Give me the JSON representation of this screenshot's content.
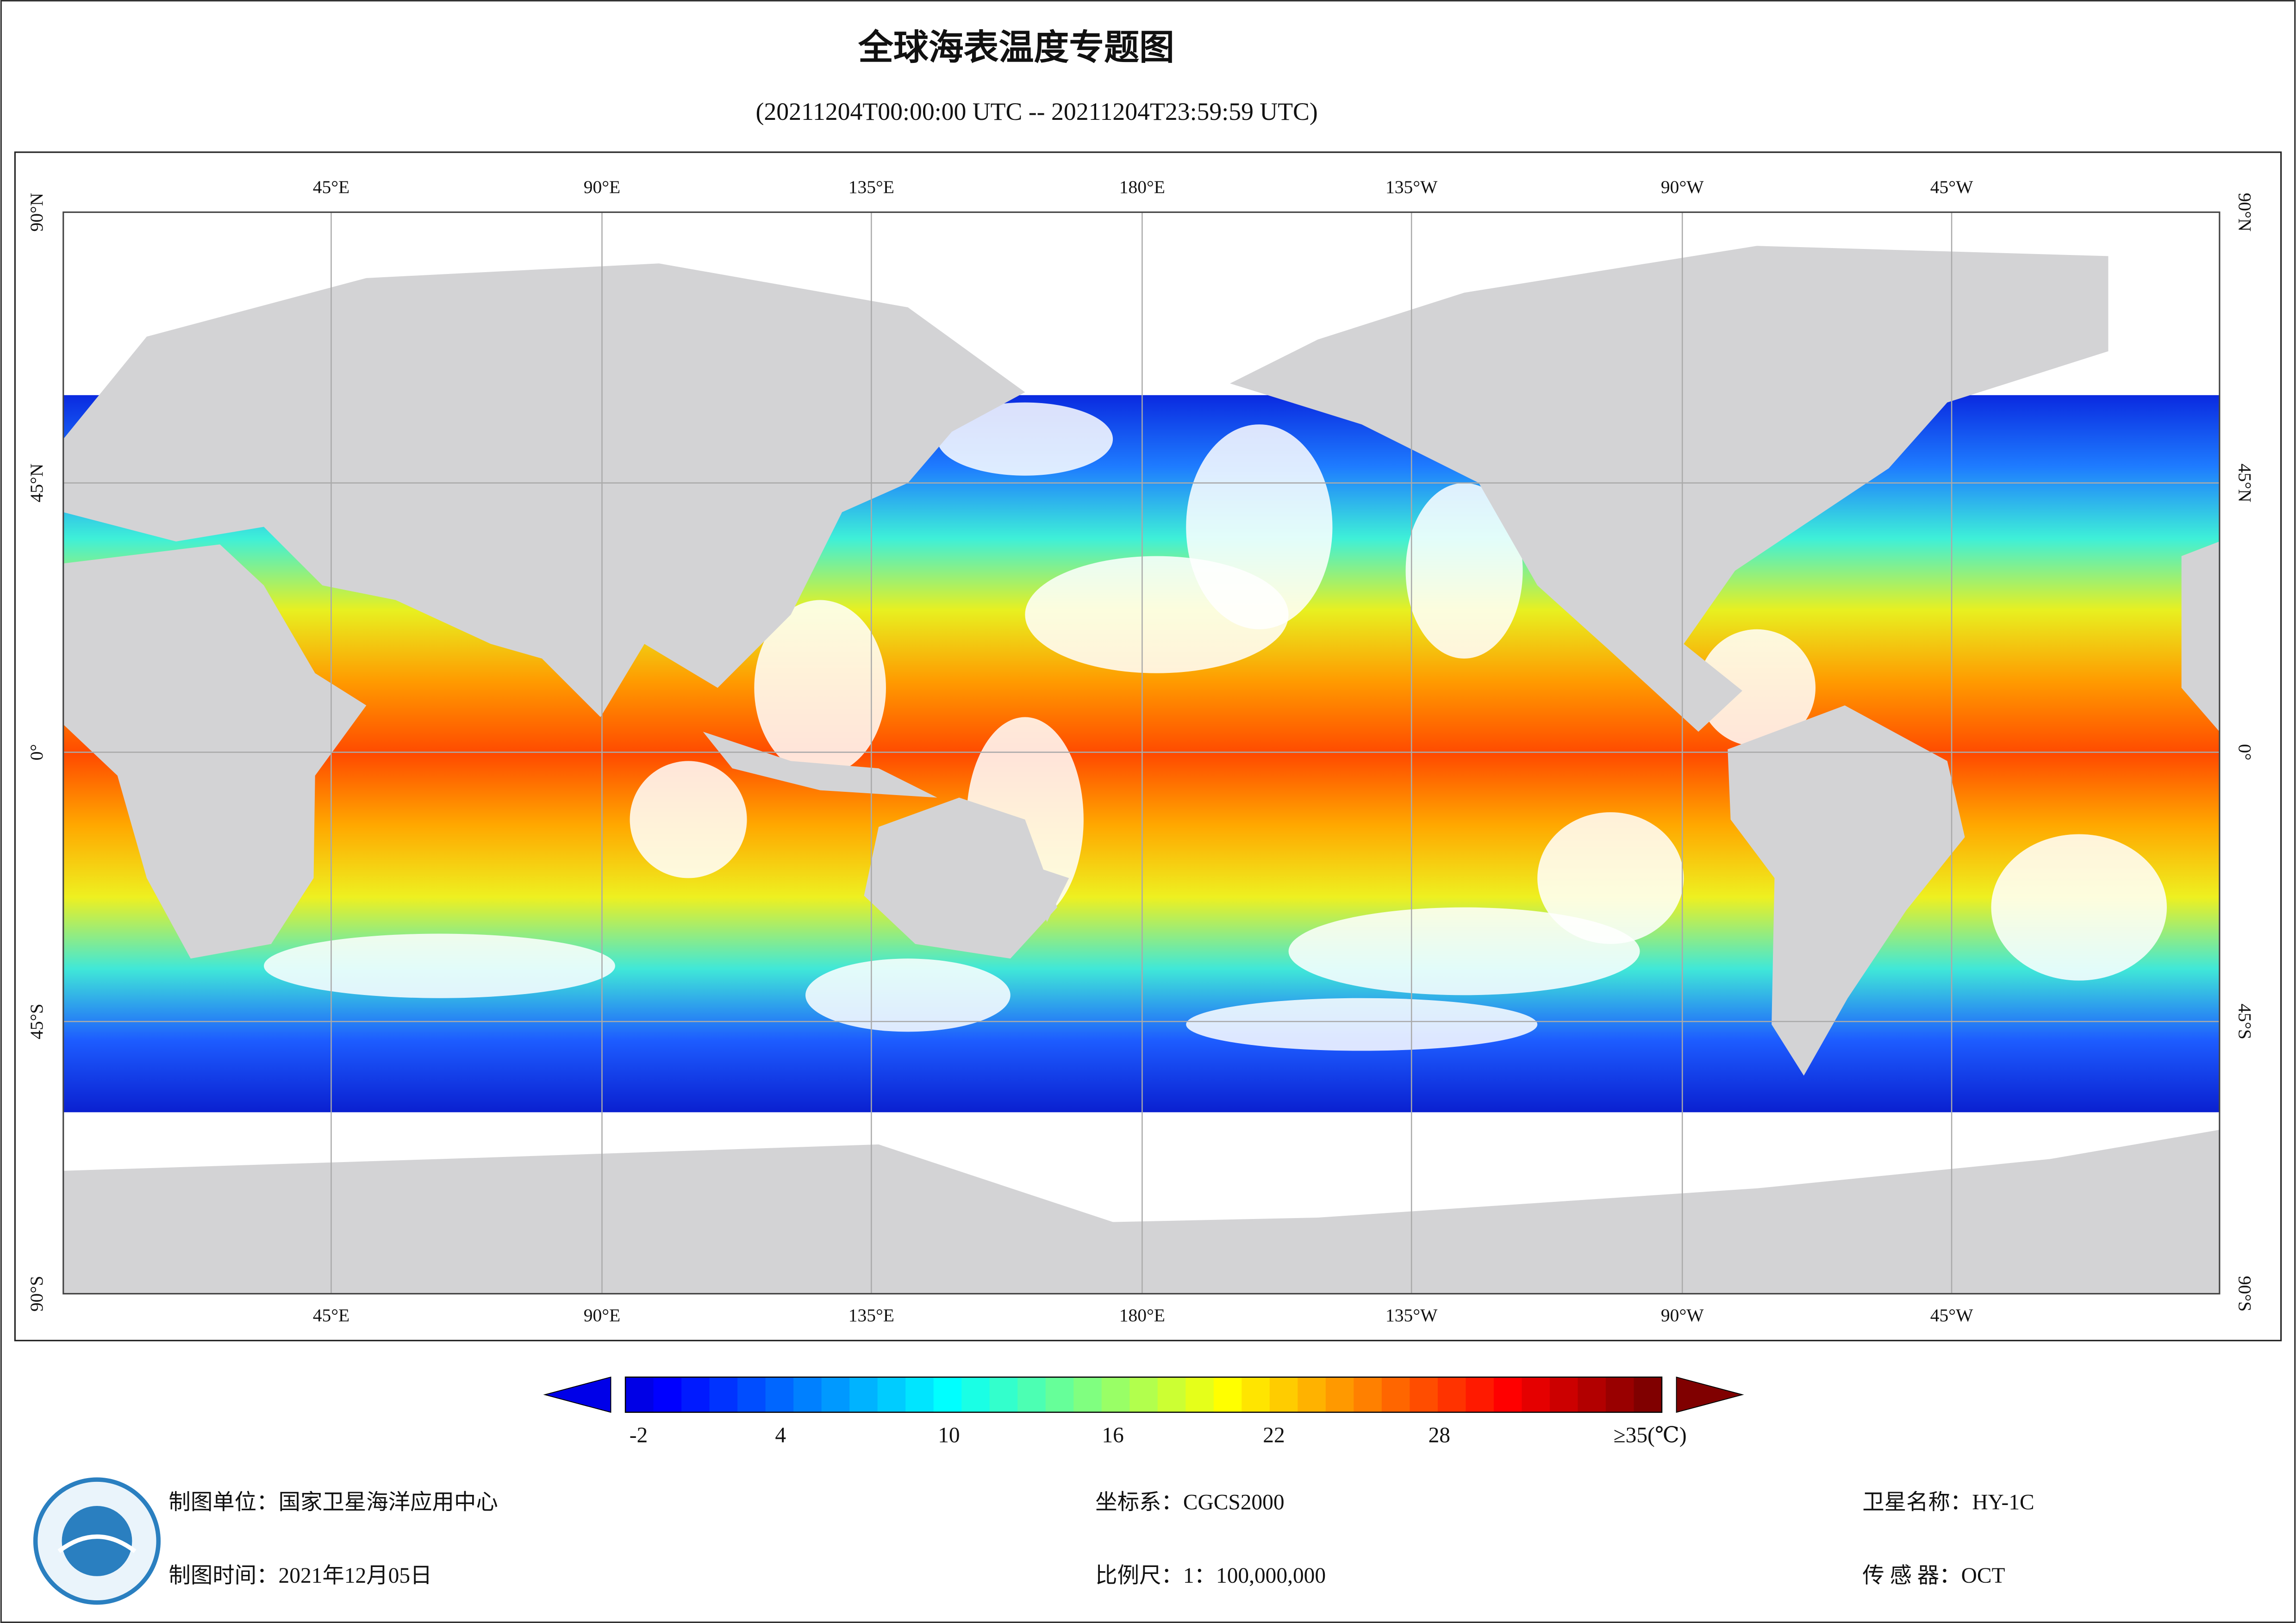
{
  "title": "全球海表温度专题图",
  "subtitle": "(20211204T00:00:00 UTC -- 20211204T23:59:59 UTC)",
  "map": {
    "lon_labels": [
      "45°E",
      "90°E",
      "135°E",
      "180°E",
      "135°W",
      "90°W",
      "45°W"
    ],
    "lat_labels": [
      "90°N",
      "45°N",
      "0°",
      "45°S",
      "90°S"
    ]
  },
  "colorbar": {
    "labels": [
      "-2",
      "4",
      "10",
      "16",
      "22",
      "28",
      "≥35(℃)"
    ]
  },
  "footer": {
    "unit": "制图单位：国家卫星海洋应用中心",
    "date": "制图时间：2021年12月05日",
    "crs": "坐标系：CGCS2000",
    "scale": "比例尺：1：100,000,000",
    "satellite": "卫星名称：HY-1C",
    "sensor": "传 感 器：OCT"
  }
}
